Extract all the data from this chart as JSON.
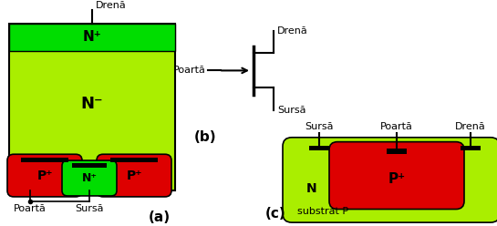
{
  "bg_color": "#ffffff",
  "green_bright": "#00dd00",
  "green_light": "#aaee00",
  "red_color": "#dd0000",
  "pink_color": "#d4a8a8",
  "black": "#000000",
  "label_a": "(a)",
  "label_b": "(b)",
  "label_c": "(c)",
  "text_drena": "Drenă",
  "text_sursa": "Sursă",
  "text_poarta": "Poartă",
  "text_Nplus": "N⁺",
  "text_Nminus": "N⁻",
  "text_Pplus": "P⁺",
  "text_N": "N",
  "text_substrat": "substrat P",
  "fig_w": 5.45,
  "fig_h": 2.48,
  "dpi": 100
}
